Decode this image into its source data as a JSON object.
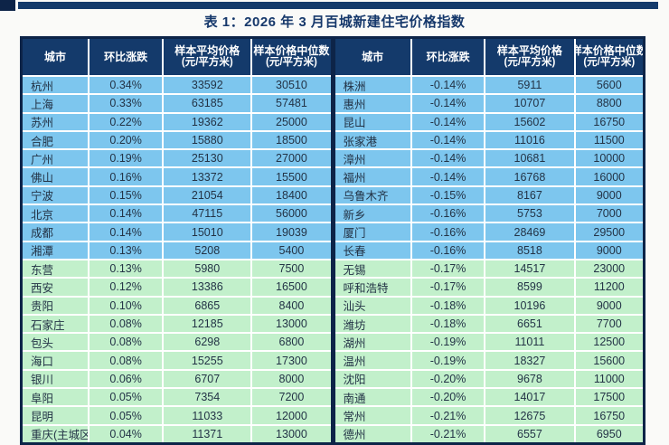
{
  "title": "表 1：2026 年 3 月百城新建住宅价格指数",
  "columns": [
    {
      "label": "城市",
      "sub": ""
    },
    {
      "label": "环比涨跌",
      "sub": ""
    },
    {
      "label": "样本平均价格",
      "sub": "(元/平方米)"
    },
    {
      "label": "样本价格中位数",
      "sub": "(元/平方米)"
    }
  ],
  "group_split_index": 10,
  "colors": {
    "header_bg": "#143a6b",
    "outer_border": "#0d2448",
    "row_blue": "#7dc6ee",
    "row_green": "#c2f0cb",
    "row_text": "#233346",
    "title_text": "#16386b"
  },
  "tables": {
    "left": {
      "rows": [
        [
          "杭州",
          "0.34%",
          "33592",
          "30510"
        ],
        [
          "上海",
          "0.33%",
          "63185",
          "57481"
        ],
        [
          "苏州",
          "0.22%",
          "19362",
          "25000"
        ],
        [
          "合肥",
          "0.20%",
          "15880",
          "18500"
        ],
        [
          "广州",
          "0.19%",
          "25130",
          "27000"
        ],
        [
          "佛山",
          "0.16%",
          "13372",
          "15500"
        ],
        [
          "宁波",
          "0.15%",
          "21054",
          "18400"
        ],
        [
          "北京",
          "0.14%",
          "47115",
          "56000"
        ],
        [
          "成都",
          "0.14%",
          "15010",
          "19039"
        ],
        [
          "湘潭",
          "0.13%",
          "5208",
          "5400"
        ],
        [
          "东营",
          "0.13%",
          "5980",
          "7500"
        ],
        [
          "西安",
          "0.12%",
          "13386",
          "16500"
        ],
        [
          "贵阳",
          "0.10%",
          "6865",
          "8400"
        ],
        [
          "石家庄",
          "0.08%",
          "12185",
          "13000"
        ],
        [
          "包头",
          "0.08%",
          "6298",
          "6800"
        ],
        [
          "海口",
          "0.08%",
          "15255",
          "17300"
        ],
        [
          "银川",
          "0.06%",
          "6707",
          "8000"
        ],
        [
          "阜阳",
          "0.05%",
          "7354",
          "7200"
        ],
        [
          "昆明",
          "0.05%",
          "11033",
          "12000"
        ],
        [
          "重庆(主城区)",
          "0.04%",
          "11371",
          "13000"
        ]
      ]
    },
    "right": {
      "rows": [
        [
          "株洲",
          "-0.14%",
          "5911",
          "5600"
        ],
        [
          "惠州",
          "-0.14%",
          "10707",
          "8800"
        ],
        [
          "昆山",
          "-0.14%",
          "15602",
          "16750"
        ],
        [
          "张家港",
          "-0.14%",
          "11016",
          "11500"
        ],
        [
          "漳州",
          "-0.14%",
          "10681",
          "10000"
        ],
        [
          "福州",
          "-0.14%",
          "16768",
          "16000"
        ],
        [
          "乌鲁木齐",
          "-0.15%",
          "8167",
          "9000"
        ],
        [
          "新乡",
          "-0.16%",
          "5753",
          "7000"
        ],
        [
          "厦门",
          "-0.16%",
          "28469",
          "29500"
        ],
        [
          "长春",
          "-0.16%",
          "8518",
          "9000"
        ],
        [
          "无锡",
          "-0.17%",
          "14517",
          "23000"
        ],
        [
          "呼和浩特",
          "-0.17%",
          "8599",
          "11200"
        ],
        [
          "汕头",
          "-0.18%",
          "10196",
          "9000"
        ],
        [
          "潍坊",
          "-0.18%",
          "6651",
          "7700"
        ],
        [
          "湖州",
          "-0.19%",
          "11011",
          "12500"
        ],
        [
          "温州",
          "-0.19%",
          "18327",
          "15600"
        ],
        [
          "沈阳",
          "-0.20%",
          "9678",
          "11000"
        ],
        [
          "南通",
          "-0.20%",
          "14017",
          "17500"
        ],
        [
          "常州",
          "-0.21%",
          "12675",
          "16750"
        ],
        [
          "德州",
          "-0.21%",
          "6557",
          "6950"
        ]
      ]
    }
  }
}
